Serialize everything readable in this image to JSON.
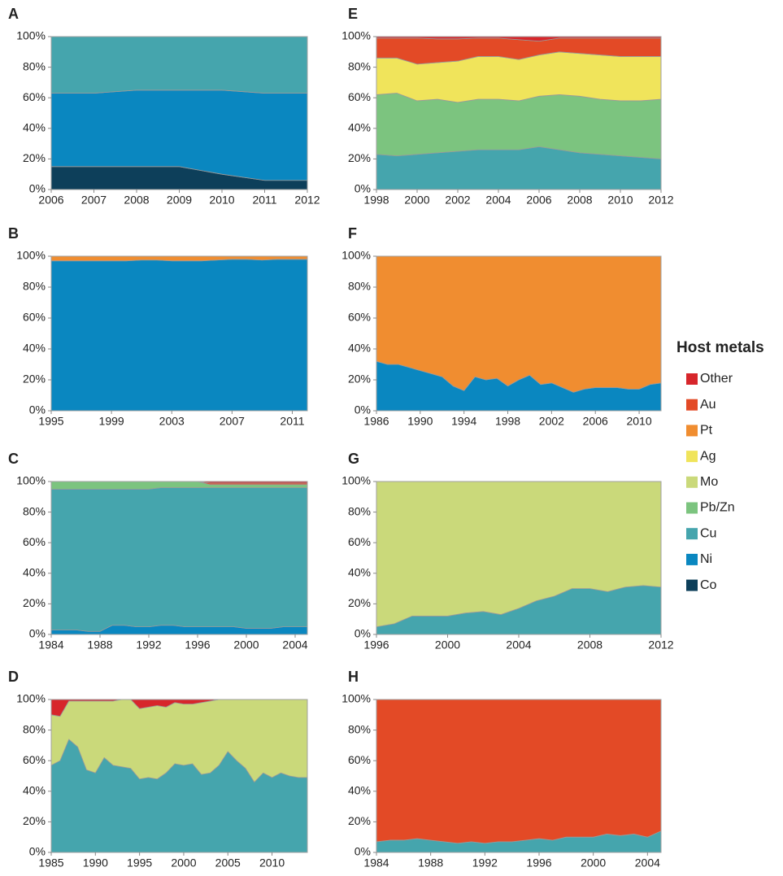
{
  "legend": {
    "title": "Host metals",
    "items": [
      {
        "name": "Other",
        "color": "#d7262b"
      },
      {
        "name": "Au",
        "color": "#e34a26"
      },
      {
        "name": "Pt",
        "color": "#f08d30"
      },
      {
        "name": "Ag",
        "color": "#f0e45b"
      },
      {
        "name": "Mo",
        "color": "#cad97a"
      },
      {
        "name": "Pb/Zn",
        "color": "#7cc47f"
      },
      {
        "name": "Cu",
        "color": "#45a5ad"
      },
      {
        "name": "Ni",
        "color": "#0a87c0"
      },
      {
        "name": "Co",
        "color": "#0d3f5a"
      }
    ]
  },
  "chart_data": [
    {
      "type": "area",
      "stacked": true,
      "title": "A",
      "x": [
        2006,
        2007,
        2008,
        2009,
        2010,
        2011,
        2012
      ],
      "xlim": [
        2006,
        2012
      ],
      "xticks": [
        2006,
        2007,
        2008,
        2009,
        2010,
        2011,
        2012
      ],
      "ylim": [
        0,
        100
      ],
      "yticks": [
        {
          "value": 0,
          "label": "0%"
        },
        {
          "value": 20,
          "label": "20%"
        },
        {
          "value": 40,
          "label": "40%"
        },
        {
          "value": 60,
          "label": "60%"
        },
        {
          "value": 80,
          "label": "80%"
        },
        {
          "value": 100,
          "label": "100%"
        }
      ],
      "series": [
        {
          "name": "Co",
          "values": [
            15,
            15,
            15,
            15,
            10,
            6,
            6
          ]
        },
        {
          "name": "Ni",
          "values": [
            48,
            48,
            50,
            50,
            55,
            57,
            57
          ]
        },
        {
          "name": "Cu",
          "values": [
            37,
            37,
            35,
            35,
            35,
            37,
            37
          ]
        }
      ]
    },
    {
      "type": "area",
      "stacked": true,
      "title": "B",
      "x": [
        1995,
        1996,
        1997,
        1998,
        1999,
        2000,
        2001,
        2002,
        2003,
        2004,
        2005,
        2006,
        2007,
        2008,
        2009,
        2010,
        2011,
        2012
      ],
      "xlim": [
        1995,
        2012
      ],
      "xticks": [
        1995,
        1999,
        2003,
        2007,
        2011
      ],
      "ylim": [
        0,
        100
      ],
      "yticks": [
        {
          "value": 0,
          "label": "0%"
        },
        {
          "value": 20,
          "label": "20%"
        },
        {
          "value": 40,
          "label": "40%"
        },
        {
          "value": 60,
          "label": "60%"
        },
        {
          "value": 80,
          "label": "80%"
        },
        {
          "value": 100,
          "label": "100%"
        }
      ],
      "series": [
        {
          "name": "Ni",
          "values": [
            97,
            97,
            97,
            97,
            97,
            97,
            97.5,
            97.5,
            97,
            97,
            97,
            97.5,
            98,
            98,
            97.5,
            98,
            98,
            98
          ]
        },
        {
          "name": "Pt",
          "values": [
            3,
            3,
            3,
            3,
            3,
            3,
            2.5,
            2.5,
            3,
            3,
            3,
            2.5,
            2,
            2,
            2.5,
            2,
            2,
            2
          ]
        }
      ]
    },
    {
      "type": "area",
      "stacked": true,
      "title": "C",
      "x": [
        1984,
        1985,
        1986,
        1987,
        1988,
        1989,
        1990,
        1991,
        1992,
        1993,
        1994,
        1995,
        1996,
        1997,
        1998,
        1999,
        2000,
        2001,
        2002,
        2003,
        2004,
        2005
      ],
      "xlim": [
        1984,
        2005
      ],
      "xticks": [
        1984,
        1988,
        1992,
        1996,
        2000,
        2004
      ],
      "ylim": [
        0,
        100
      ],
      "yticks": [
        {
          "value": 0,
          "label": "0%"
        },
        {
          "value": 20,
          "label": "20%"
        },
        {
          "value": 40,
          "label": "40%"
        },
        {
          "value": 60,
          "label": "60%"
        },
        {
          "value": 80,
          "label": "80%"
        },
        {
          "value": 100,
          "label": "100%"
        }
      ],
      "series": [
        {
          "name": "Ni",
          "values": [
            3,
            3,
            3,
            2,
            2,
            6,
            6,
            5,
            5,
            6,
            6,
            5,
            5,
            5,
            5,
            5,
            4,
            4,
            4,
            5,
            5,
            5
          ]
        },
        {
          "name": "Cu",
          "values": [
            92,
            92,
            92,
            93,
            93,
            89,
            89,
            90,
            90,
            90,
            90,
            91,
            91,
            91,
            91,
            91,
            92,
            92,
            92,
            91,
            91,
            91
          ]
        },
        {
          "name": "Pb/Zn",
          "values": [
            5,
            5,
            5,
            5,
            5,
            5,
            5,
            5,
            5,
            4,
            4,
            4,
            4,
            2,
            2,
            2,
            2,
            2,
            2,
            2,
            2,
            2
          ]
        },
        {
          "name": "Au",
          "values": [
            0,
            0,
            0,
            0,
            0,
            0,
            0,
            0,
            0,
            0,
            0,
            0,
            0,
            1,
            1,
            1,
            1,
            1,
            1,
            1,
            1,
            1
          ]
        },
        {
          "name": "Other",
          "values": [
            0,
            0,
            0,
            0,
            0,
            0,
            0,
            0,
            0,
            0,
            0,
            0,
            0,
            1,
            1,
            1,
            1,
            1,
            1,
            1,
            1,
            1
          ]
        }
      ]
    },
    {
      "type": "area",
      "stacked": true,
      "title": "D",
      "x": [
        1985,
        1986,
        1987,
        1988,
        1989,
        1990,
        1991,
        1992,
        1993,
        1994,
        1995,
        1996,
        1997,
        1998,
        1999,
        2000,
        2001,
        2002,
        2003,
        2004,
        2005,
        2006,
        2007,
        2008,
        2009,
        2010,
        2011,
        2012,
        2013,
        2014
      ],
      "xlim": [
        1985,
        2014
      ],
      "xticks": [
        1985,
        1990,
        1995,
        2000,
        2005,
        2010
      ],
      "ylim": [
        0,
        100
      ],
      "yticks": [
        {
          "value": 0,
          "label": "0%"
        },
        {
          "value": 20,
          "label": "20%"
        },
        {
          "value": 40,
          "label": "40%"
        },
        {
          "value": 60,
          "label": "60%"
        },
        {
          "value": 80,
          "label": "80%"
        },
        {
          "value": 100,
          "label": "100%"
        }
      ],
      "series": [
        {
          "name": "Cu",
          "values": [
            57,
            60,
            74,
            69,
            54,
            52,
            62,
            57,
            56,
            55,
            48,
            49,
            48,
            52,
            58,
            57,
            58,
            51,
            52,
            57,
            66,
            60,
            55,
            46,
            52,
            49,
            52,
            50,
            49,
            49
          ]
        },
        {
          "name": "Mo",
          "values": [
            33,
            29,
            25,
            30,
            45,
            47,
            37,
            42,
            44,
            45,
            46,
            46,
            48,
            43,
            40,
            40,
            39,
            47,
            47,
            43,
            34,
            40,
            45,
            54,
            48,
            51,
            48,
            50,
            51,
            51
          ]
        },
        {
          "name": "Other",
          "values": [
            10,
            11,
            1,
            1,
            1,
            1,
            1,
            1,
            0,
            0,
            6,
            5,
            4,
            5,
            2,
            3,
            3,
            2,
            1,
            0,
            0,
            0,
            0,
            0,
            0,
            0,
            0,
            0,
            0,
            0
          ]
        }
      ]
    },
    {
      "type": "area",
      "stacked": true,
      "title": "E",
      "x": [
        1998,
        1999,
        2000,
        2001,
        2002,
        2003,
        2004,
        2005,
        2006,
        2007,
        2008,
        2009,
        2010,
        2011,
        2012
      ],
      "xlim": [
        1998,
        2012
      ],
      "xticks": [
        1998,
        2000,
        2002,
        2004,
        2006,
        2008,
        2010,
        2012
      ],
      "ylim": [
        0,
        100
      ],
      "yticks": [
        {
          "value": 0,
          "label": "0%"
        },
        {
          "value": 20,
          "label": "20%"
        },
        {
          "value": 40,
          "label": "40%"
        },
        {
          "value": 60,
          "label": "60%"
        },
        {
          "value": 80,
          "label": "80%"
        },
        {
          "value": 100,
          "label": "100%"
        }
      ],
      "series": [
        {
          "name": "Cu",
          "values": [
            23,
            22,
            23,
            24,
            25,
            26,
            26,
            26,
            28,
            26,
            24,
            23,
            22,
            21,
            20
          ]
        },
        {
          "name": "Pb/Zn",
          "values": [
            39,
            41,
            35,
            35,
            32,
            33,
            33,
            32,
            33,
            36,
            37,
            36,
            36,
            37,
            39
          ]
        },
        {
          "name": "Ag",
          "values": [
            24,
            23,
            24,
            24,
            27,
            28,
            28,
            27,
            27,
            28,
            28,
            29,
            29,
            29,
            28
          ]
        },
        {
          "name": "Au",
          "values": [
            13,
            13,
            17,
            15.5,
            14.5,
            12,
            12,
            13,
            9,
            9,
            10,
            11,
            12,
            12,
            12
          ]
        },
        {
          "name": "Other",
          "values": [
            1,
            1,
            1,
            1.5,
            1.5,
            1,
            1,
            2,
            3,
            1,
            1,
            1,
            1,
            1,
            1
          ]
        }
      ]
    },
    {
      "type": "area",
      "stacked": true,
      "title": "F",
      "x": [
        1986,
        1987,
        1988,
        1989,
        1990,
        1991,
        1992,
        1993,
        1994,
        1995,
        1996,
        1997,
        1998,
        1999,
        2000,
        2001,
        2002,
        2003,
        2004,
        2005,
        2006,
        2007,
        2008,
        2009,
        2010,
        2011,
        2012
      ],
      "xlim": [
        1986,
        2012
      ],
      "xticks": [
        1986,
        1990,
        1994,
        1998,
        2002,
        2006,
        2010
      ],
      "ylim": [
        0,
        100
      ],
      "yticks": [
        {
          "value": 0,
          "label": "0%"
        },
        {
          "value": 20,
          "label": "20%"
        },
        {
          "value": 40,
          "label": "40%"
        },
        {
          "value": 60,
          "label": "60%"
        },
        {
          "value": 80,
          "label": "80%"
        },
        {
          "value": 100,
          "label": "100%"
        }
      ],
      "series": [
        {
          "name": "Ni",
          "values": [
            32,
            30,
            30,
            28,
            26,
            24,
            22,
            16,
            13,
            22,
            20,
            21,
            16,
            20,
            23,
            17,
            18,
            15,
            12,
            14,
            15,
            15,
            15,
            14,
            14,
            17,
            18
          ]
        },
        {
          "name": "Pt",
          "values": [
            68,
            70,
            70,
            72,
            74,
            76,
            78,
            84,
            87,
            78,
            80,
            79,
            84,
            80,
            77,
            83,
            82,
            85,
            88,
            86,
            85,
            85,
            85,
            86,
            86,
            83,
            82
          ]
        }
      ]
    },
    {
      "type": "area",
      "stacked": true,
      "title": "G",
      "x": [
        1996,
        1997,
        1998,
        1999,
        2000,
        2001,
        2002,
        2003,
        2004,
        2005,
        2006,
        2007,
        2008,
        2009,
        2010,
        2011,
        2012
      ],
      "xlim": [
        1996,
        2012
      ],
      "xticks": [
        1996,
        2000,
        2004,
        2008,
        2012
      ],
      "ylim": [
        0,
        100
      ],
      "yticks": [
        {
          "value": 0,
          "label": "0%"
        },
        {
          "value": 20,
          "label": "20%"
        },
        {
          "value": 40,
          "label": "40%"
        },
        {
          "value": 60,
          "label": "60%"
        },
        {
          "value": 80,
          "label": "80%"
        },
        {
          "value": 100,
          "label": "100%"
        }
      ],
      "series": [
        {
          "name": "Cu",
          "values": [
            5,
            7,
            12,
            12,
            12,
            14,
            15,
            13,
            17,
            22,
            25,
            30,
            30,
            28,
            31,
            32,
            31
          ]
        },
        {
          "name": "Mo",
          "values": [
            95,
            93,
            88,
            88,
            88,
            86,
            85,
            87,
            83,
            78,
            75,
            70,
            70,
            72,
            69,
            68,
            69
          ]
        }
      ]
    },
    {
      "type": "area",
      "stacked": true,
      "title": "H",
      "x": [
        1984,
        1985,
        1986,
        1987,
        1988,
        1989,
        1990,
        1991,
        1992,
        1993,
        1994,
        1995,
        1996,
        1997,
        1998,
        1999,
        2000,
        2001,
        2002,
        2003,
        2004,
        2005
      ],
      "xlim": [
        1984,
        2005
      ],
      "xticks": [
        1984,
        1988,
        1992,
        1996,
        2000,
        2004
      ],
      "ylim": [
        0,
        100
      ],
      "yticks": [
        {
          "value": 0,
          "label": "0%"
        },
        {
          "value": 20,
          "label": "20%"
        },
        {
          "value": 40,
          "label": "40%"
        },
        {
          "value": 60,
          "label": "60%"
        },
        {
          "value": 80,
          "label": "80%"
        },
        {
          "value": 100,
          "label": "100%"
        }
      ],
      "series": [
        {
          "name": "Cu",
          "values": [
            7,
            8,
            8,
            9,
            8,
            7,
            6,
            7,
            6,
            7,
            7,
            8,
            9,
            8,
            10,
            10,
            10,
            12,
            11,
            12,
            10,
            14
          ]
        },
        {
          "name": "Au",
          "values": [
            93,
            92,
            92,
            91,
            92,
            93,
            94,
            93,
            94,
            93,
            93,
            92,
            91,
            92,
            90,
            90,
            90,
            88,
            89,
            88,
            90,
            86
          ]
        }
      ]
    }
  ]
}
